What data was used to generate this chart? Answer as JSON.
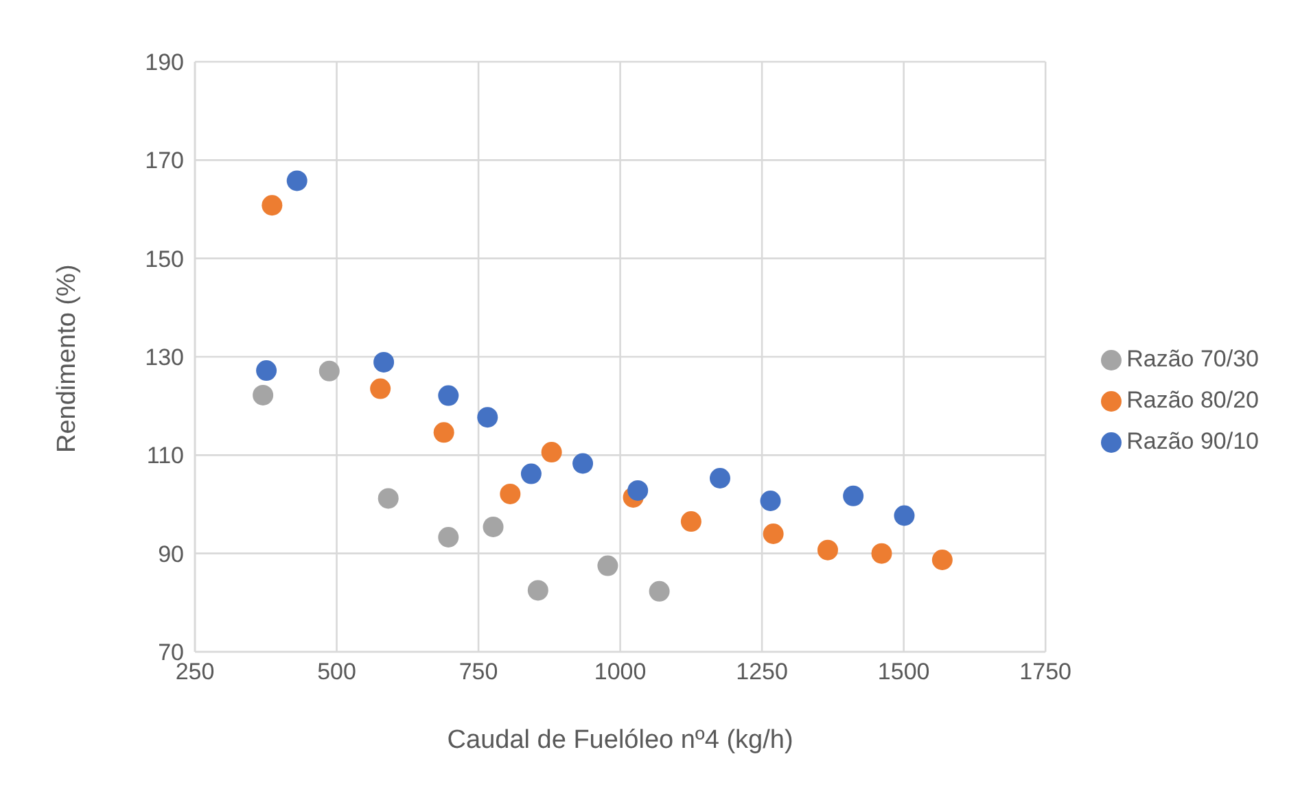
{
  "chart_data": {
    "type": "scatter",
    "xlabel": "Caudal de Fuelóleo nº4 (kg/h)",
    "ylabel": "Rendimento (%)",
    "xlim": [
      250,
      1750
    ],
    "xticks": [
      250,
      500,
      750,
      1000,
      1250,
      1500,
      1750
    ],
    "ylim": [
      70,
      190
    ],
    "yticks": [
      70,
      90,
      110,
      130,
      150,
      170,
      190
    ],
    "grid": true,
    "legend": "right",
    "marker": "circle",
    "series": [
      {
        "name": "Razão 90/10",
        "color": "#4472c4",
        "x": [
          430,
          376,
          583,
          697,
          766,
          843,
          934,
          1031,
          1176,
          1265,
          1411,
          1501
        ],
        "values": [
          165.8,
          127.2,
          128.9,
          122.1,
          117.7,
          106.2,
          108.3,
          102.8,
          105.3,
          100.7,
          101.7,
          97.7
        ]
      },
      {
        "name": "Razão 80/20",
        "color": "#ed7d31",
        "x": [
          386,
          577,
          689,
          806,
          879,
          1023,
          1125,
          1270,
          1366,
          1461,
          1568
        ],
        "values": [
          160.8,
          123.5,
          114.6,
          102.1,
          110.6,
          101.4,
          96.5,
          94.0,
          90.7,
          90.0,
          88.7
        ]
      },
      {
        "name": "Razão 70/30",
        "color": "#a5a5a5",
        "x": [
          370,
          487,
          591,
          697,
          776,
          855,
          978,
          1069
        ],
        "values": [
          122.2,
          127.1,
          101.2,
          93.3,
          95.4,
          82.5,
          87.5,
          82.3
        ]
      }
    ]
  }
}
